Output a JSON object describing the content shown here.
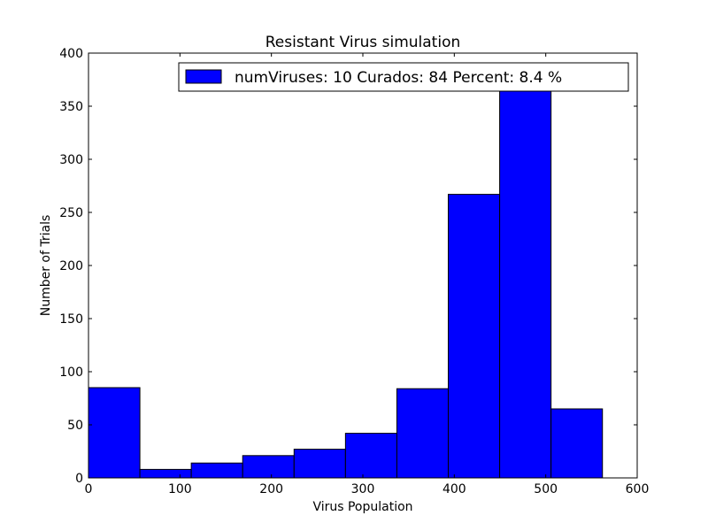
{
  "chart_data": {
    "type": "bar",
    "title": "Resistant Virus simulation",
    "xlabel": "Virus Population",
    "ylabel": "Number of Trials",
    "xlim": [
      0,
      600
    ],
    "ylim": [
      0,
      400
    ],
    "xticks": [
      0,
      100,
      200,
      300,
      400,
      500,
      600
    ],
    "yticks": [
      0,
      50,
      100,
      150,
      200,
      250,
      300,
      350,
      400
    ],
    "grid": false,
    "legend_position": "top-right",
    "bar_color": "#0000ff",
    "series": [
      {
        "name": "numViruses: 10 Curados: 84 Percent: 8.4 %",
        "bins": [
          {
            "x0": 0,
            "x1": 56.2,
            "value": 85
          },
          {
            "x0": 56.2,
            "x1": 112.4,
            "value": 8
          },
          {
            "x0": 112.4,
            "x1": 168.6,
            "value": 14
          },
          {
            "x0": 168.6,
            "x1": 224.8,
            "value": 21
          },
          {
            "x0": 224.8,
            "x1": 281.0,
            "value": 27
          },
          {
            "x0": 281.0,
            "x1": 337.2,
            "value": 42
          },
          {
            "x0": 337.2,
            "x1": 393.4,
            "value": 84
          },
          {
            "x0": 393.4,
            "x1": 449.6,
            "value": 267
          },
          {
            "x0": 449.6,
            "x1": 505.8,
            "value": 366
          },
          {
            "x0": 505.8,
            "x1": 562.0,
            "value": 65
          }
        ]
      }
    ]
  }
}
